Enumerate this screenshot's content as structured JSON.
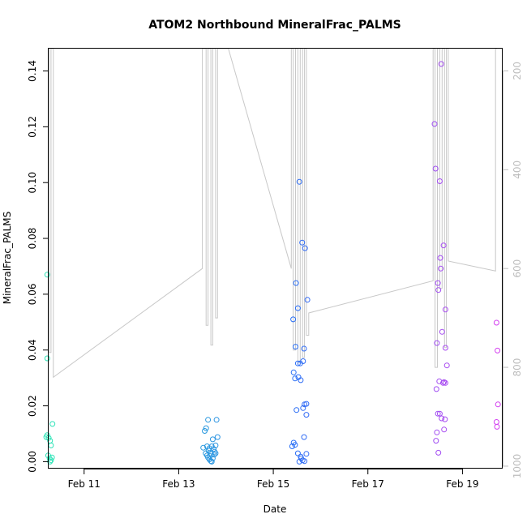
{
  "chart_data": {
    "type": "scatter",
    "title": "ATOM2 Northbound MineralFrac_PALMS",
    "xlabel": "Date",
    "ylabel": "MineralFrac_PALMS",
    "x_tick_labels": [
      "Feb 11",
      "Feb 13",
      "Feb 15",
      "Feb 17",
      "Feb 19"
    ],
    "y_ticks": [
      0.0,
      0.02,
      0.04,
      0.06,
      0.08,
      0.1,
      0.12,
      0.14
    ],
    "y_tick_labels": [
      "0.00",
      "0.02",
      "0.04",
      "0.06",
      "0.08",
      "0.10",
      "0.12",
      "0.14"
    ],
    "y2_ticks": [
      200,
      400,
      600,
      800,
      1000
    ],
    "y2_tick_labels": [
      "200",
      "400",
      "600",
      "800",
      "1000"
    ],
    "xlim": [
      10.25,
      19.85
    ],
    "ylim": [
      -0.0025,
      0.148
    ],
    "y2lim": [
      1005,
      155
    ],
    "y2_reversed": true,
    "grid": false,
    "colors": {
      "secondary_line": "#c8c8c8",
      "secondary_axis": "#bdbdbd",
      "points_start": "#2de8b5",
      "points_end": "#d63ef0"
    },
    "series": [
      {
        "name": "",
        "axis": "left",
        "style": "points",
        "points": [
          {
            "x": 10.22,
            "y": 0.067
          },
          {
            "x": 10.22,
            "y": 0.037
          },
          {
            "x": 10.2,
            "y": 0.0088
          },
          {
            "x": 10.22,
            "y": 0.0095
          },
          {
            "x": 10.25,
            "y": 0.0085
          },
          {
            "x": 10.28,
            "y": 0.0075
          },
          {
            "x": 10.3,
            "y": 0.0058
          },
          {
            "x": 10.33,
            "y": 0.0135
          },
          {
            "x": 10.24,
            "y": 0.0022
          },
          {
            "x": 10.27,
            "y": 0.0012
          },
          {
            "x": 10.3,
            "y": 0.0005
          },
          {
            "x": 10.32,
            "y": 0.0015
          },
          {
            "x": 10.28,
            "y": 0.0
          },
          {
            "x": 13.52,
            "y": 0.005
          },
          {
            "x": 13.55,
            "y": 0.011
          },
          {
            "x": 13.58,
            "y": 0.012
          },
          {
            "x": 13.62,
            "y": 0.015
          },
          {
            "x": 13.6,
            "y": 0.0055
          },
          {
            "x": 13.63,
            "y": 0.004
          },
          {
            "x": 13.65,
            "y": 0.0048
          },
          {
            "x": 13.67,
            "y": 0.003
          },
          {
            "x": 13.7,
            "y": 0.0055
          },
          {
            "x": 13.72,
            "y": 0.008
          },
          {
            "x": 13.74,
            "y": 0.0045
          },
          {
            "x": 13.76,
            "y": 0.0035
          },
          {
            "x": 13.78,
            "y": 0.0058
          },
          {
            "x": 13.8,
            "y": 0.015
          },
          {
            "x": 13.82,
            "y": 0.0088
          },
          {
            "x": 13.57,
            "y": 0.003
          },
          {
            "x": 13.6,
            "y": 0.0022
          },
          {
            "x": 13.62,
            "y": 0.0015
          },
          {
            "x": 13.65,
            "y": 0.0008
          },
          {
            "x": 13.68,
            "y": 0.0002
          },
          {
            "x": 13.7,
            "y": 0.0
          },
          {
            "x": 13.72,
            "y": 0.0012
          },
          {
            "x": 13.75,
            "y": 0.0025
          },
          {
            "x": 13.78,
            "y": 0.003
          },
          {
            "x": 13.66,
            "y": 0.002
          },
          {
            "x": 15.55,
            "y": 0.1003
          },
          {
            "x": 15.61,
            "y": 0.0785
          },
          {
            "x": 15.67,
            "y": 0.0765
          },
          {
            "x": 15.48,
            "y": 0.064
          },
          {
            "x": 15.72,
            "y": 0.058
          },
          {
            "x": 15.52,
            "y": 0.055
          },
          {
            "x": 15.42,
            "y": 0.051
          },
          {
            "x": 15.47,
            "y": 0.0412
          },
          {
            "x": 15.65,
            "y": 0.0405
          },
          {
            "x": 15.63,
            "y": 0.036
          },
          {
            "x": 15.52,
            "y": 0.0352
          },
          {
            "x": 15.57,
            "y": 0.0352
          },
          {
            "x": 15.43,
            "y": 0.032
          },
          {
            "x": 15.46,
            "y": 0.0298
          },
          {
            "x": 15.53,
            "y": 0.0303
          },
          {
            "x": 15.58,
            "y": 0.0292
          },
          {
            "x": 15.66,
            "y": 0.0205
          },
          {
            "x": 15.7,
            "y": 0.0207
          },
          {
            "x": 15.63,
            "y": 0.0192
          },
          {
            "x": 15.49,
            "y": 0.0185
          },
          {
            "x": 15.7,
            "y": 0.0168
          },
          {
            "x": 15.65,
            "y": 0.0088
          },
          {
            "x": 15.43,
            "y": 0.0068
          },
          {
            "x": 15.46,
            "y": 0.006
          },
          {
            "x": 15.4,
            "y": 0.0055
          },
          {
            "x": 15.52,
            "y": 0.003
          },
          {
            "x": 15.58,
            "y": 0.0018
          },
          {
            "x": 15.62,
            "y": 0.0005
          },
          {
            "x": 15.66,
            "y": 0.0002
          },
          {
            "x": 15.7,
            "y": 0.0028
          },
          {
            "x": 15.55,
            "y": 0.0
          },
          {
            "x": 15.59,
            "y": 0.0012
          },
          {
            "x": 18.55,
            "y": 0.1425
          },
          {
            "x": 18.41,
            "y": 0.121
          },
          {
            "x": 18.43,
            "y": 0.105
          },
          {
            "x": 18.52,
            "y": 0.1005
          },
          {
            "x": 18.6,
            "y": 0.0775
          },
          {
            "x": 18.53,
            "y": 0.073
          },
          {
            "x": 18.54,
            "y": 0.0692
          },
          {
            "x": 18.48,
            "y": 0.064
          },
          {
            "x": 18.49,
            "y": 0.0615
          },
          {
            "x": 18.64,
            "y": 0.0545
          },
          {
            "x": 18.57,
            "y": 0.0465
          },
          {
            "x": 18.46,
            "y": 0.0425
          },
          {
            "x": 18.64,
            "y": 0.0408
          },
          {
            "x": 18.67,
            "y": 0.0345
          },
          {
            "x": 18.51,
            "y": 0.0288
          },
          {
            "x": 18.59,
            "y": 0.0282
          },
          {
            "x": 18.61,
            "y": 0.0285
          },
          {
            "x": 18.64,
            "y": 0.0282
          },
          {
            "x": 18.45,
            "y": 0.026
          },
          {
            "x": 18.48,
            "y": 0.0172
          },
          {
            "x": 18.52,
            "y": 0.0172
          },
          {
            "x": 18.56,
            "y": 0.0155
          },
          {
            "x": 18.63,
            "y": 0.0152
          },
          {
            "x": 18.61,
            "y": 0.0115
          },
          {
            "x": 18.46,
            "y": 0.0105
          },
          {
            "x": 18.44,
            "y": 0.0075
          },
          {
            "x": 18.49,
            "y": 0.0032
          },
          {
            "x": 19.72,
            "y": 0.0498
          },
          {
            "x": 19.74,
            "y": 0.0398
          },
          {
            "x": 19.75,
            "y": 0.0205
          },
          {
            "x": 19.72,
            "y": 0.0142
          },
          {
            "x": 19.73,
            "y": 0.0125
          }
        ]
      },
      {
        "name": "",
        "axis": "right",
        "style": "line",
        "x": [
          10.2,
          10.2,
          10.26,
          10.26,
          10.3,
          10.3,
          10.35,
          10.35,
          13.5,
          13.5,
          13.58,
          13.58,
          13.62,
          13.62,
          13.68,
          13.68,
          13.72,
          13.72,
          13.78,
          13.78,
          13.82,
          13.82,
          14.05,
          15.38,
          15.38,
          15.42,
          15.42,
          15.47,
          15.47,
          15.52,
          15.52,
          15.57,
          15.57,
          15.62,
          15.62,
          15.66,
          15.66,
          15.7,
          15.7,
          15.75,
          15.75,
          18.38,
          18.38,
          18.42,
          18.42,
          18.47,
          18.47,
          18.52,
          18.52,
          18.57,
          18.57,
          18.62,
          18.62,
          18.66,
          18.66,
          18.7,
          18.7,
          19.7,
          19.7,
          19.73
        ],
        "y": [
          755,
          155,
          155,
          770,
          770,
          155,
          155,
          820,
          600,
          155,
          155,
          715,
          715,
          155,
          155,
          755,
          755,
          155,
          155,
          700,
          700,
          155,
          155,
          600,
          155,
          155,
          765,
          765,
          155,
          155,
          790,
          790,
          155,
          155,
          780,
          780,
          155,
          155,
          735,
          735,
          690,
          625,
          155,
          155,
          800,
          800,
          155,
          155,
          640,
          640,
          155,
          155,
          760,
          760,
          155,
          155,
          585,
          605,
          155,
          155
        ]
      }
    ]
  }
}
